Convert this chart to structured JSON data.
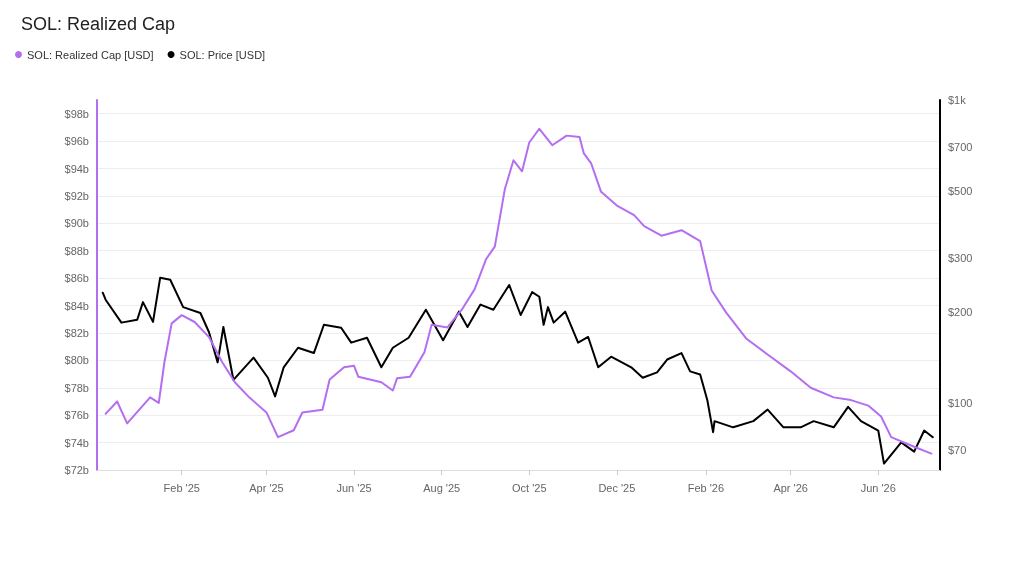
{
  "chart_data": {
    "type": "line",
    "title": "SOL: Realized Cap",
    "xlim": [
      "2024-12-04",
      "2026-07-14"
    ],
    "xticks": [
      {
        "value": "2025-02-01",
        "label": "Feb '25"
      },
      {
        "value": "2025-04-01",
        "label": "Apr '25"
      },
      {
        "value": "2025-06-01",
        "label": "Jun '25"
      },
      {
        "value": "2025-08-01",
        "label": "Aug '25"
      },
      {
        "value": "2025-10-01",
        "label": "Oct '25"
      },
      {
        "value": "2025-12-01",
        "label": "Dec '25"
      },
      {
        "value": "2026-02-01",
        "label": "Feb '26"
      },
      {
        "value": "2026-04-01",
        "label": "Apr '26"
      },
      {
        "value": "2026-06-01",
        "label": "Jun '26"
      }
    ],
    "ylim": [
      72,
      99
    ],
    "yticks": [
      {
        "value": 72,
        "label": "$72b"
      },
      {
        "value": 74,
        "label": "$74b"
      },
      {
        "value": 76,
        "label": "$76b"
      },
      {
        "value": 78,
        "label": "$78b"
      },
      {
        "value": 80,
        "label": "$80b"
      },
      {
        "value": 82,
        "label": "$82b"
      },
      {
        "value": 84,
        "label": "$84b"
      },
      {
        "value": 86,
        "label": "$86b"
      },
      {
        "value": 88,
        "label": "$88b"
      },
      {
        "value": 90,
        "label": "$90b"
      },
      {
        "value": 92,
        "label": "$92b"
      },
      {
        "value": 94,
        "label": "$94b"
      },
      {
        "value": 96,
        "label": "$96b"
      },
      {
        "value": 98,
        "label": "$98b"
      }
    ],
    "y2lim": [
      60,
      1000
    ],
    "y2ticks": [
      {
        "value": 70,
        "label": "$70"
      },
      {
        "value": 100,
        "label": "$100"
      },
      {
        "value": 200,
        "label": "$200"
      },
      {
        "value": 300,
        "label": "$300"
      },
      {
        "value": 500,
        "label": "$500"
      },
      {
        "value": 700,
        "label": "$700"
      },
      {
        "value": 1000,
        "label": "$1k"
      }
    ],
    "log": "y2",
    "grid": "y",
    "legend": "top left",
    "marker": "none",
    "line_style": "solid",
    "series": [
      {
        "name": "SOL: Realized Cap [USD]",
        "color": "#b46ef0",
        "x": [
          "2024-12-10",
          "2024-12-18",
          "2024-12-25",
          "2025-01-10",
          "2025-01-16",
          "2025-01-20",
          "2025-01-25",
          "2025-02-01",
          "2025-02-10",
          "2025-02-20",
          "2025-03-01",
          "2025-03-10",
          "2025-03-20",
          "2025-04-01",
          "2025-04-09",
          "2025-04-20",
          "2025-04-26",
          "2025-05-10",
          "2025-05-15",
          "2025-05-25",
          "2025-06-01",
          "2025-06-04",
          "2025-06-20",
          "2025-06-28",
          "2025-07-01",
          "2025-07-10",
          "2025-07-20",
          "2025-07-25",
          "2025-08-05",
          "2025-08-15",
          "2025-08-24",
          "2025-09-01",
          "2025-09-07",
          "2025-09-14",
          "2025-09-20",
          "2025-09-26",
          "2025-10-01",
          "2025-10-08",
          "2025-10-17",
          "2025-10-27",
          "2025-11-05",
          "2025-11-08",
          "2025-11-13",
          "2025-11-20",
          "2025-12-01",
          "2025-12-13",
          "2025-12-20",
          "2026-01-01",
          "2026-01-15",
          "2026-01-28",
          "2026-02-05",
          "2026-02-15",
          "2026-03-01",
          "2026-03-15",
          "2026-04-01",
          "2026-04-15",
          "2026-05-01",
          "2026-05-13",
          "2026-05-25",
          "2026-06-03",
          "2026-06-10",
          "2026-06-26",
          "2026-07-08"
        ],
        "values": [
          76.1,
          77.0,
          75.4,
          77.3,
          76.9,
          79.9,
          82.7,
          83.3,
          82.8,
          81.7,
          79.9,
          78.4,
          77.3,
          76.2,
          74.4,
          74.9,
          76.2,
          76.4,
          78.6,
          79.5,
          79.6,
          78.8,
          78.4,
          77.8,
          78.7,
          78.8,
          80.6,
          82.6,
          82.4,
          83.7,
          85.2,
          87.4,
          88.3,
          92.5,
          94.6,
          93.8,
          95.9,
          96.9,
          95.7,
          96.4,
          96.3,
          95.1,
          94.4,
          92.3,
          91.3,
          90.6,
          89.8,
          89.1,
          89.5,
          88.7,
          85.1,
          83.5,
          81.6,
          80.5,
          79.2,
          78.0,
          77.3,
          77.1,
          76.7,
          75.9,
          74.4,
          73.7,
          73.2
        ]
      },
      {
        "name": "SOL: Price [USD]",
        "color": "#000000",
        "axis": "y2",
        "x": [
          "2024-12-08",
          "2024-12-10",
          "2024-12-21",
          "2025-01-01",
          "2025-01-05",
          "2025-01-12",
          "2025-01-17",
          "2025-01-24",
          "2025-02-02",
          "2025-02-14",
          "2025-02-20",
          "2025-02-26",
          "2025-03-02",
          "2025-03-09",
          "2025-03-23",
          "2025-04-02",
          "2025-04-07",
          "2025-04-13",
          "2025-04-23",
          "2025-05-04",
          "2025-05-11",
          "2025-05-23",
          "2025-05-30",
          "2025-06-10",
          "2025-06-20",
          "2025-06-28",
          "2025-07-09",
          "2025-07-21",
          "2025-08-02",
          "2025-08-13",
          "2025-08-19",
          "2025-08-28",
          "2025-09-06",
          "2025-09-17",
          "2025-09-25",
          "2025-10-03",
          "2025-10-08",
          "2025-10-11",
          "2025-10-14",
          "2025-10-18",
          "2025-10-26",
          "2025-11-04",
          "2025-11-11",
          "2025-11-18",
          "2025-11-27",
          "2025-12-11",
          "2025-12-19",
          "2025-12-29",
          "2026-01-05",
          "2026-01-15",
          "2026-01-21",
          "2026-01-28",
          "2026-02-02",
          "2026-02-06",
          "2026-02-07",
          "2026-02-20",
          "2026-03-06",
          "2026-03-16",
          "2026-03-27",
          "2026-04-08",
          "2026-04-17",
          "2026-05-01",
          "2026-05-11",
          "2026-05-20",
          "2026-06-01",
          "2026-06-05",
          "2026-06-17",
          "2026-06-26",
          "2026-07-03",
          "2026-07-09"
        ],
        "values": [
          231,
          219,
          184,
          188,
          215,
          185,
          259,
          255,
          207,
          198,
          171,
          136,
          178,
          119,
          141,
          121,
          105,
          131,
          152,
          146,
          181,
          177,
          158,
          164,
          131,
          152,
          164,
          203,
          161,
          200,
          178,
          211,
          203,
          245,
          195,
          232,
          224,
          181,
          207,
          184,
          200,
          158,
          165,
          131,
          142,
          131,
          121,
          126,
          139,
          146,
          127,
          124,
          102,
          80,
          87,
          83,
          87,
          95,
          83,
          83,
          87,
          83,
          97,
          87,
          81,
          63,
          74,
          69,
          81,
          77
        ]
      }
    ]
  }
}
